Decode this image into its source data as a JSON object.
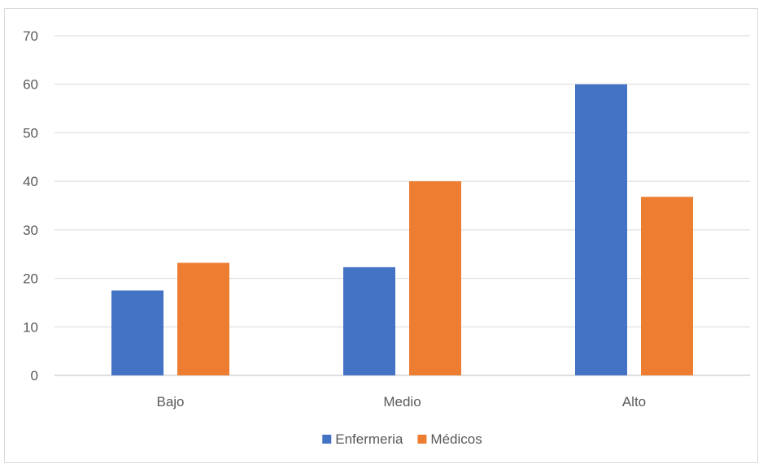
{
  "chart_data": {
    "type": "bar",
    "categories": [
      "Bajo",
      "Medio",
      "Alto"
    ],
    "series": [
      {
        "name": "Enfermeria",
        "values": [
          17.5,
          22.3,
          60.0
        ],
        "color": "#4472C4"
      },
      {
        "name": "Médicos",
        "values": [
          23.2,
          40.0,
          36.8
        ],
        "color": "#ED7D31"
      }
    ],
    "ylim": [
      0,
      70
    ],
    "yticks": [
      0,
      10,
      20,
      30,
      40,
      50,
      60,
      70
    ],
    "grid": true,
    "legend_position": "bottom",
    "title": "",
    "xlabel": "",
    "ylabel": ""
  }
}
